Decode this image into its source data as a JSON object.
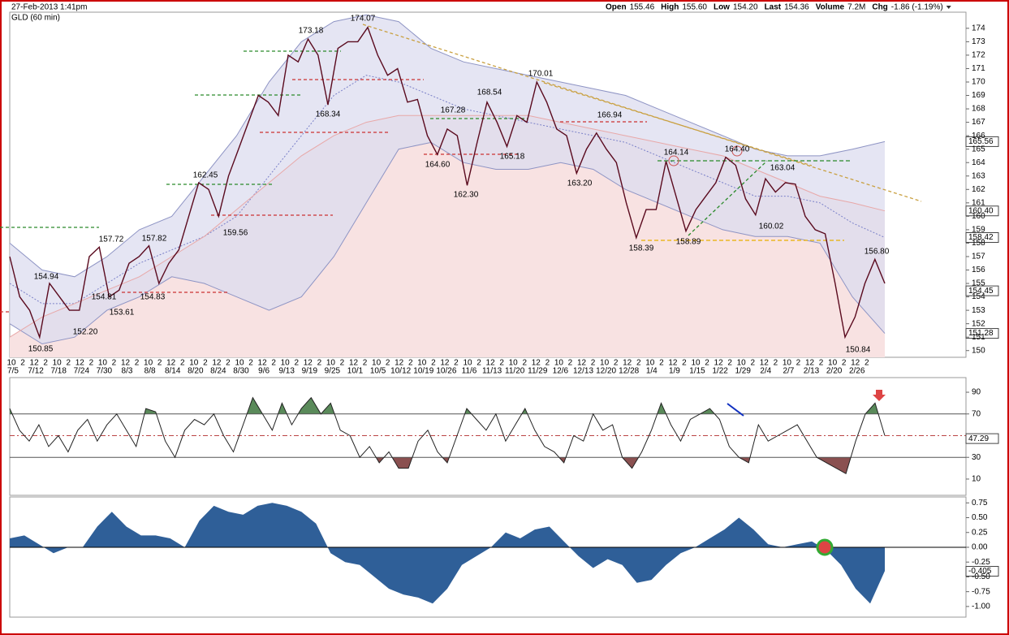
{
  "header": {
    "timestamp": "27-Feb-2013 1:41pm",
    "symbol": "GLD (60 min)",
    "quote": [
      {
        "label": "Open",
        "value": "155.46"
      },
      {
        "label": "High",
        "value": "155.60"
      },
      {
        "label": "Low",
        "value": "154.20"
      },
      {
        "label": "Last",
        "value": "154.36"
      },
      {
        "label": "Volume",
        "value": "7.2M"
      },
      {
        "label": "Chg",
        "value": "-1.86 (-1.19%)"
      }
    ]
  },
  "chart_data": [
    {
      "type": "line",
      "name": "price",
      "ylim": [
        149.5,
        175.2
      ],
      "yticks": [
        150,
        151,
        152,
        153,
        154,
        155,
        156,
        157,
        158,
        159,
        160,
        161,
        162,
        163,
        164,
        165,
        166,
        167,
        168,
        169,
        170,
        171,
        172,
        173,
        174
      ],
      "series": [
        {
          "name": "GLD",
          "color": "#5a0a1e",
          "values": [
            157,
            154,
            153,
            151,
            155,
            154,
            153,
            153,
            157,
            157.7,
            154,
            154.5,
            156.5,
            157,
            157.8,
            155,
            156.5,
            157.5,
            160,
            162.5,
            162,
            160,
            163,
            165,
            167,
            169,
            168.5,
            167.5,
            172,
            171.5,
            173.2,
            172,
            168.3,
            172.5,
            173,
            173,
            174.07,
            172,
            170.5,
            171,
            168.5,
            168.7,
            166,
            164.6,
            166.5,
            166,
            162.3,
            165.5,
            168.5,
            167,
            165.2,
            167.5,
            167,
            170,
            168.5,
            166.5,
            166,
            163.2,
            165,
            166.2,
            165,
            164,
            161,
            158.4,
            160.5,
            160.5,
            164.1,
            161.5,
            158.9,
            160.5,
            161.5,
            162.5,
            164.4,
            163.8,
            161.3,
            160.1,
            162.8,
            161.8,
            162.5,
            162.4,
            160,
            159,
            158.7,
            155,
            151,
            152.5,
            155,
            156.8,
            155
          ]
        },
        {
          "name": "Upper band",
          "color": "#8e94c4",
          "values": [
            158,
            156,
            155.5,
            157,
            159,
            160,
            163,
            166,
            170,
            173,
            174.5,
            175,
            174.5,
            172.5,
            171.5,
            171,
            170.5,
            170,
            169.5,
            169,
            168,
            167,
            166,
            165,
            164.5,
            164.5,
            165,
            165.56
          ]
        },
        {
          "name": "Lower band",
          "color": "#8e94c4",
          "values": [
            152,
            150.5,
            151,
            153,
            154,
            155.5,
            155,
            154,
            153,
            154,
            157,
            161,
            165,
            165.5,
            164,
            163.5,
            163.5,
            164,
            163.5,
            162,
            161,
            160,
            159,
            158.5,
            158.5,
            158,
            154,
            151.28
          ]
        },
        {
          "name": "Middle band",
          "color": "#7a80c8",
          "values": [
            155,
            153.5,
            153.5,
            155,
            156.5,
            157.5,
            158.5,
            160,
            163,
            166,
            169,
            170.5,
            170,
            169,
            168,
            167.5,
            167,
            166.5,
            166,
            165.5,
            164.5,
            163.5,
            162.5,
            161.5,
            161.5,
            161,
            159.5,
            158.42
          ]
        },
        {
          "name": "Moving average",
          "color": "#e8a8a8",
          "values": [
            151,
            152.5,
            153.5,
            154.5,
            155.5,
            157,
            158.5,
            160.5,
            162.5,
            164.5,
            166,
            167,
            167.5,
            167.5,
            167.5,
            167.5,
            167.5,
            167,
            166.5,
            166,
            165.5,
            165,
            164.5,
            163.5,
            162.5,
            161.5,
            161,
            160.4
          ]
        }
      ],
      "right_labels": [
        "165.56",
        "160.40",
        "158.42",
        "154.45",
        "151.28"
      ],
      "annotations": [
        "174.07",
        "173.18",
        "170.01",
        "168.54",
        "167.28",
        "166.94",
        "164.14",
        "164.40",
        "163.04",
        "162.45",
        "157.72",
        "157.82",
        "154.94",
        "154.81",
        "153.61",
        "154.83",
        "152.20",
        "150.85",
        "159.56",
        "168.34",
        "165.18",
        "164.60",
        "162.30",
        "163.20",
        "158.39",
        "158.89",
        "160.02",
        "156.80",
        "150.84"
      ],
      "date_ticks": [
        "7/5",
        "7/12",
        "7/18",
        "7/24",
        "7/30",
        "8/3",
        "8/8",
        "8/14",
        "8/20",
        "8/24",
        "8/30",
        "9/6",
        "9/13",
        "9/19",
        "9/25",
        "10/1",
        "10/5",
        "10/12",
        "10/19",
        "10/26",
        "11/6",
        "11/13",
        "11/20",
        "11/29",
        "12/6",
        "12/13",
        "12/20",
        "12/28",
        "1/4",
        "1/9",
        "1/15",
        "1/22",
        "1/29",
        "2/4",
        "2/7",
        "2/13",
        "2/20",
        "2/26"
      ],
      "hour_ticks": [
        "10",
        "2",
        "12",
        "2",
        "10",
        "2",
        "12",
        "2",
        "10",
        "2",
        "12",
        "2",
        "10",
        "2",
        "12",
        "2",
        "10",
        "2",
        "12",
        "2",
        "10",
        "2",
        "12",
        "2",
        "10",
        "2",
        "12",
        "2",
        "10",
        "2",
        "12",
        "2",
        "10",
        "2",
        "12",
        "2",
        "10",
        "2",
        "12",
        "2",
        "10",
        "2",
        "12",
        "2",
        "10",
        "2",
        "12",
        "2",
        "10",
        "2",
        "12",
        "2",
        "10",
        "2",
        "12",
        "2",
        "10",
        "2",
        "12",
        "2",
        "10",
        "2",
        "12",
        "2",
        "10",
        "2",
        "12",
        "2",
        "10",
        "2",
        "12",
        "2",
        "10",
        "2",
        "12",
        "2"
      ]
    },
    {
      "type": "line",
      "name": "rsi",
      "ylim": [
        -5,
        103.5
      ],
      "yticks": [
        10,
        30,
        70,
        90
      ],
      "reference": 50,
      "color": "#222",
      "right_label": "47.29",
      "values": [
        75,
        55,
        45,
        60,
        40,
        50,
        35,
        55,
        65,
        45,
        60,
        70,
        55,
        40,
        75,
        72,
        45,
        30,
        55,
        65,
        60,
        70,
        50,
        35,
        60,
        85,
        70,
        55,
        80,
        60,
        75,
        85,
        70,
        80,
        55,
        50,
        30,
        40,
        25,
        35,
        20,
        20,
        45,
        55,
        35,
        25,
        50,
        75,
        65,
        55,
        70,
        45,
        60,
        75,
        55,
        40,
        35,
        25,
        50,
        45,
        70,
        55,
        60,
        30,
        20,
        35,
        55,
        80,
        60,
        45,
        65,
        70,
        75,
        65,
        40,
        30,
        25,
        60,
        45,
        50,
        55,
        60,
        45,
        30,
        25,
        20,
        15,
        45,
        70,
        80,
        50
      ]
    },
    {
      "type": "area",
      "name": "oscillator",
      "ylim": [
        -1.18,
        0.85
      ],
      "color": "#2f5f98",
      "right_label": "-0.405",
      "yticks": [
        0.75,
        {
          "value": 0.5,
          "label": "0.50"
        },
        0.25,
        {
          "value": 0,
          "label": "0.00"
        },
        -0.25,
        {
          "value": -0.5,
          "label": "-0.50"
        },
        -0.75,
        {
          "value": -1,
          "label": "-1.00"
        }
      ],
      "values": [
        0.15,
        0.2,
        0.05,
        -0.1,
        0,
        0,
        0.35,
        0.6,
        0.35,
        0.2,
        0.2,
        0.15,
        0,
        0.45,
        0.7,
        0.6,
        0.55,
        0.7,
        0.75,
        0.7,
        0.6,
        0.4,
        -0.1,
        -0.25,
        -0.3,
        -0.5,
        -0.7,
        -0.8,
        -0.85,
        -0.95,
        -0.7,
        -0.3,
        -0.15,
        0,
        0.25,
        0.15,
        0.3,
        0.35,
        0.1,
        -0.15,
        -0.35,
        -0.2,
        -0.3,
        -0.6,
        -0.55,
        -0.3,
        -0.1,
        0,
        0.15,
        0.3,
        0.5,
        0.3,
        0.05,
        0,
        0.05,
        0.1,
        -0.05,
        -0.3,
        -0.7,
        -0.95,
        -0.4
      ]
    }
  ]
}
